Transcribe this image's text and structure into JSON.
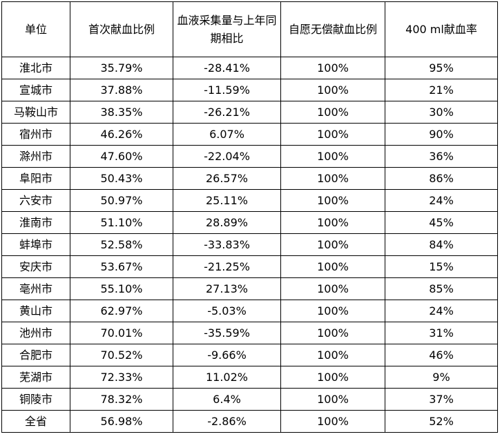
{
  "table": {
    "headers": [
      "单位",
      "首次献血比例",
      "血液采集量与上年同期相比",
      "自愿无偿献血比例",
      "400 ml献血率"
    ],
    "rows": [
      [
        "淮北市",
        "35.79%",
        "-28.41%",
        "100%",
        "95%"
      ],
      [
        "宣城市",
        "37.88%",
        "-11.59%",
        "100%",
        "21%"
      ],
      [
        "马鞍山市",
        "38.35%",
        "-26.21%",
        "100%",
        "30%"
      ],
      [
        "宿州市",
        "46.26%",
        "6.07%",
        "100%",
        "90%"
      ],
      [
        "滁州市",
        "47.60%",
        "-22.04%",
        "100%",
        "36%"
      ],
      [
        "阜阳市",
        "50.43%",
        "26.57%",
        "100%",
        "86%"
      ],
      [
        "六安市",
        "50.97%",
        "25.11%",
        "100%",
        "24%"
      ],
      [
        "淮南市",
        "51.10%",
        "28.89%",
        "100%",
        "45%"
      ],
      [
        "蚌埠市",
        "52.58%",
        "-33.83%",
        "100%",
        "84%"
      ],
      [
        "安庆市",
        "53.67%",
        "-21.25%",
        "100%",
        "15%"
      ],
      [
        "亳州市",
        "55.10%",
        "27.13%",
        "100%",
        "85%"
      ],
      [
        "黄山市",
        "62.97%",
        "-5.03%",
        "100%",
        "24%"
      ],
      [
        "池州市",
        "70.01%",
        "-35.59%",
        "100%",
        "31%"
      ],
      [
        "合肥市",
        "70.52%",
        "-9.66%",
        "100%",
        "46%"
      ],
      [
        "芜湖市",
        "72.33%",
        "11.02%",
        "100%",
        "9%"
      ],
      [
        "铜陵市",
        "78.32%",
        "6.4%",
        "100%",
        "37%"
      ],
      [
        "全省",
        "56.98%",
        "-2.86%",
        "100%",
        "52%"
      ]
    ]
  }
}
